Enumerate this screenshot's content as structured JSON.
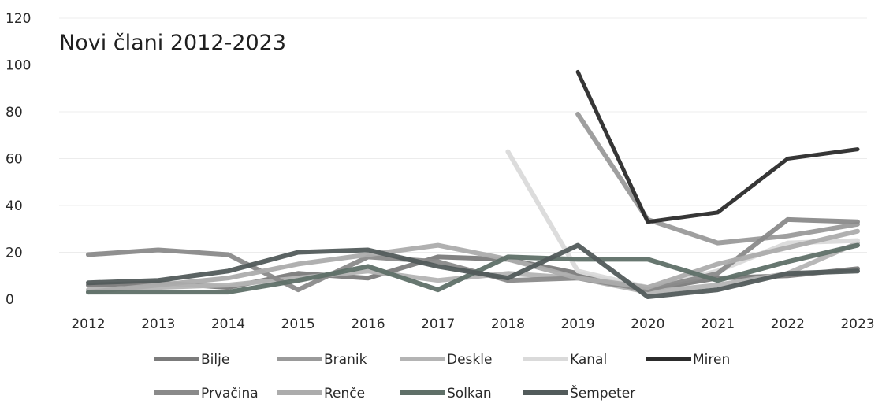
{
  "chart_data": {
    "type": "line",
    "title": "Novi člani 2012-2023",
    "xlabel": "",
    "ylabel": "",
    "x": [
      "2012",
      "2013",
      "2014",
      "2015",
      "2016",
      "2017",
      "2018",
      "2019",
      "2020",
      "2021",
      "2022",
      "2023"
    ],
    "ylim": [
      0,
      120
    ],
    "yticks": [
      "0",
      "20",
      "40",
      "60",
      "80",
      "100",
      "120"
    ],
    "grid": true,
    "legend_position": "bottom",
    "series": [
      {
        "name": "Bilje",
        "color": "#7b7b7b",
        "values": [
          6,
          7,
          5,
          11,
          9,
          18,
          17,
          11,
          4,
          9,
          10,
          13
        ]
      },
      {
        "name": "Branik",
        "color": "#9a9a9a",
        "values": [
          null,
          null,
          null,
          null,
          null,
          null,
          null,
          79,
          34,
          24,
          27,
          32
        ]
      },
      {
        "name": "Deskle",
        "color": "#b4b4b4",
        "values": [
          4,
          5,
          6,
          9,
          12,
          8,
          11,
          9,
          3,
          6,
          11,
          24
        ]
      },
      {
        "name": "Kanal",
        "color": "#dadada",
        "values": [
          null,
          null,
          null,
          null,
          null,
          null,
          63,
          12,
          5,
          12,
          24,
          25
        ]
      },
      {
        "name": "Miren",
        "color": "#2b2b2b",
        "values": [
          null,
          null,
          null,
          null,
          null,
          null,
          null,
          97,
          33,
          37,
          60,
          64
        ]
      },
      {
        "name": "Prvačina",
        "color": "#8a8a8a",
        "values": [
          19,
          21,
          19,
          4,
          18,
          16,
          8,
          9,
          4,
          11,
          34,
          33
        ]
      },
      {
        "name": "Renče",
        "color": "#acacac",
        "values": [
          3,
          6,
          9,
          15,
          19,
          23,
          17,
          9,
          5,
          15,
          22,
          29
        ]
      },
      {
        "name": "Solkan",
        "color": "#5f7068",
        "values": [
          3,
          3,
          3,
          8,
          14,
          4,
          18,
          17,
          17,
          8,
          16,
          23
        ]
      },
      {
        "name": "Šempeter",
        "color": "#525b5b",
        "values": [
          7,
          8,
          12,
          20,
          21,
          14,
          9,
          23,
          1,
          4,
          11,
          12
        ]
      }
    ]
  }
}
